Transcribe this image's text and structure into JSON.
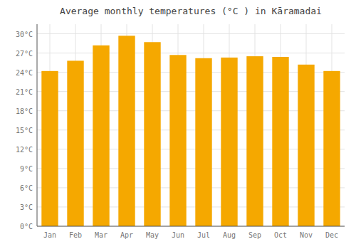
{
  "chart_data": {
    "type": "bar",
    "title": "Average monthly temperatures (°C ) in Kāramadai",
    "categories": [
      "Jan",
      "Feb",
      "Mar",
      "Apr",
      "May",
      "Jun",
      "Jul",
      "Aug",
      "Sep",
      "Oct",
      "Nov",
      "Dec"
    ],
    "values": [
      24.2,
      25.8,
      28.2,
      29.7,
      28.7,
      26.7,
      26.2,
      26.3,
      26.5,
      26.4,
      25.2,
      24.2
    ],
    "color": "#F5A800",
    "ylim": [
      0,
      31.5
    ],
    "yticks": [
      {
        "value": 0,
        "label": "0°C"
      },
      {
        "value": 3,
        "label": "3°C"
      },
      {
        "value": 6,
        "label": "6°C"
      },
      {
        "value": 9,
        "label": "9°C"
      },
      {
        "value": 12,
        "label": "12°C"
      },
      {
        "value": 15,
        "label": "15°C"
      },
      {
        "value": 18,
        "label": "18°C"
      },
      {
        "value": 21,
        "label": "21°C"
      },
      {
        "value": 24,
        "label": "24°C"
      },
      {
        "value": 27,
        "label": "27°C"
      },
      {
        "value": 30,
        "label": "30°C"
      }
    ],
    "grid": true
  }
}
